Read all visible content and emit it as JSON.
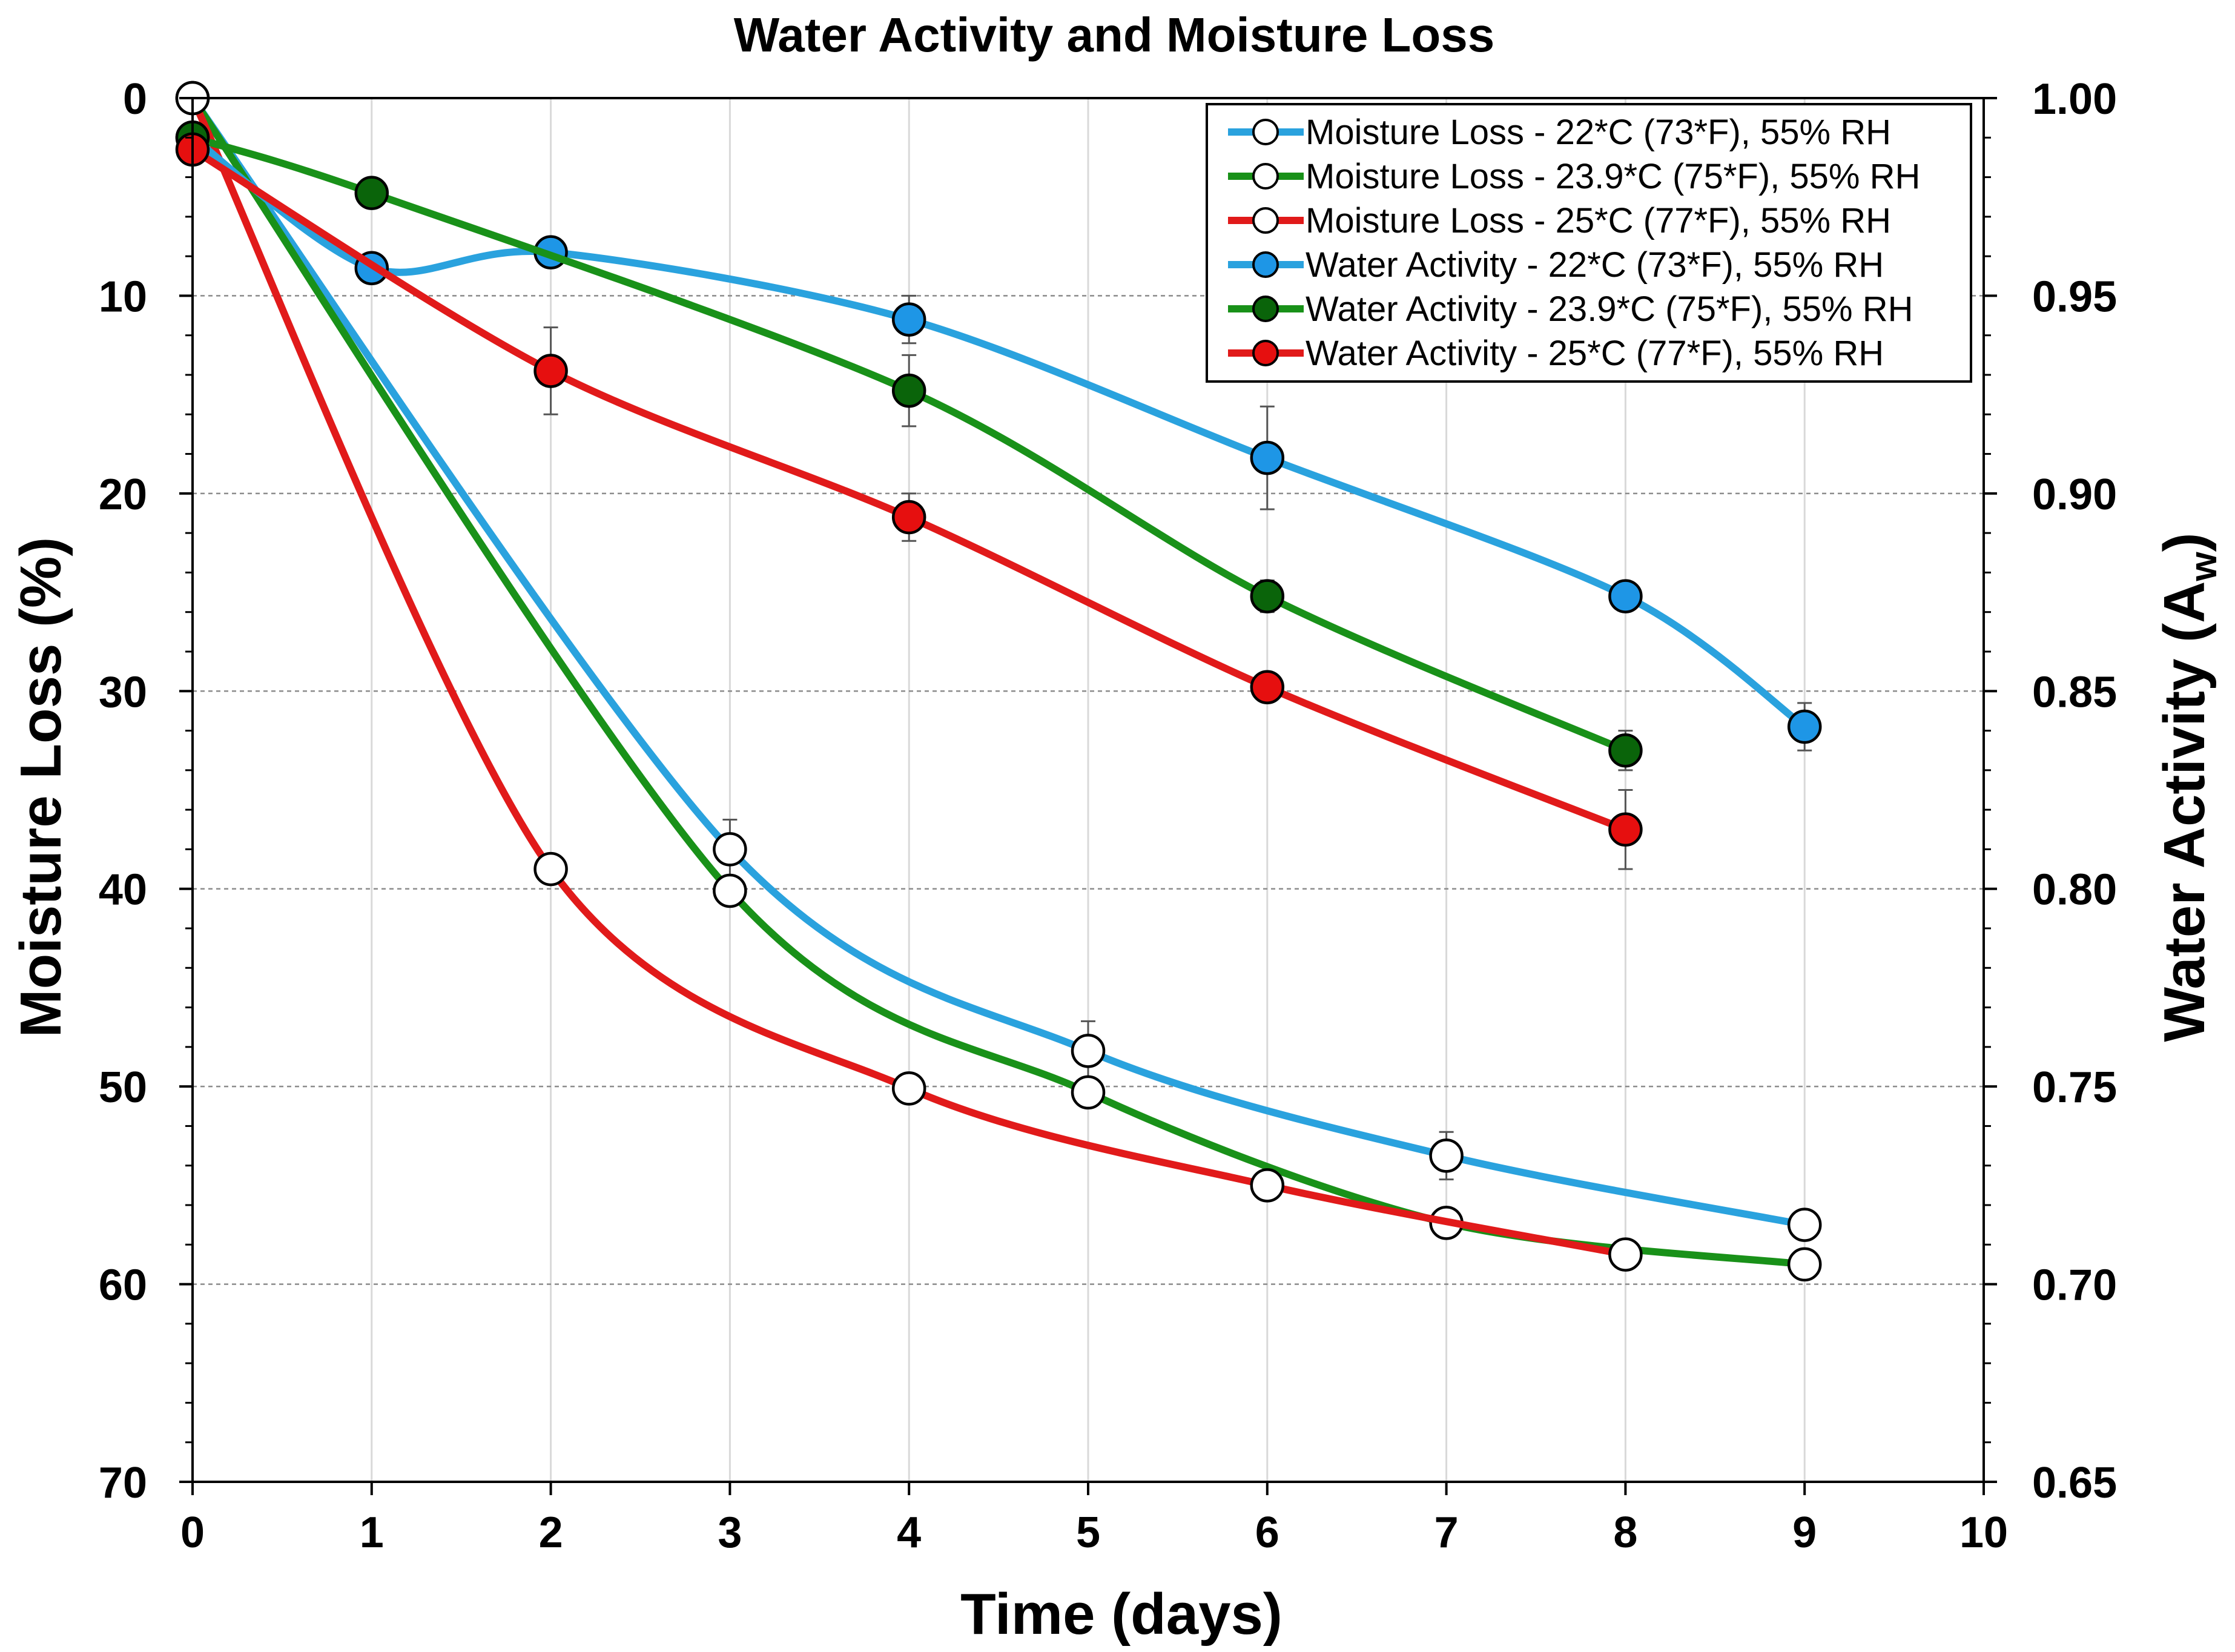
{
  "chart_data": {
    "type": "line",
    "title": "Water Activity and Moisture Loss",
    "xlabel": "Time (days)",
    "ylabel": "Moisture Loss (%)",
    "y2label_main": "Water Activity (A",
    "y2label_sub": "w",
    "y2label_close": ")",
    "xlim": [
      0,
      10
    ],
    "ylim": [
      0,
      70
    ],
    "y_inverted": true,
    "y2lim": [
      0.65,
      1.0
    ],
    "x_ticks": [
      "0",
      "1",
      "2",
      "3",
      "4",
      "5",
      "6",
      "7",
      "8",
      "9",
      "10"
    ],
    "y_ticks": [
      "0",
      "10",
      "20",
      "30",
      "40",
      "50",
      "60",
      "70"
    ],
    "y2_ticks": [
      "1.00",
      "0.95",
      "0.90",
      "0.85",
      "0.80",
      "0.75",
      "0.70",
      "0.65"
    ],
    "grid": true,
    "legend_position": "top-right",
    "series": [
      {
        "name": "Moisture Loss - 22*C (73*F), 55% RH",
        "axis": "left",
        "color": "#2aa2de",
        "marker": "open",
        "x": [
          0,
          3,
          5,
          7,
          9
        ],
        "values": [
          0,
          38.0,
          48.2,
          53.5,
          57.0
        ],
        "error": [
          null,
          1.5,
          1.5,
          1.2,
          null
        ]
      },
      {
        "name": "Moisture Loss - 23.9*C (75*F), 55% RH",
        "axis": "left",
        "color": "#199119",
        "marker": "open",
        "x": [
          0,
          3,
          5,
          7,
          9
        ],
        "values": [
          0,
          40.1,
          50.3,
          56.9,
          59.0
        ],
        "error": [
          null,
          null,
          null,
          null,
          null
        ]
      },
      {
        "name": "Moisture Loss - 25*C (77*F), 55% RH",
        "axis": "left",
        "color": "#e11a1a",
        "marker": "open",
        "x": [
          0,
          2,
          4,
          6,
          8
        ],
        "values": [
          0,
          39.0,
          50.1,
          55.0,
          58.5
        ],
        "error": [
          null,
          null,
          null,
          null,
          null
        ]
      },
      {
        "name": "Water Activity - 22*C (73*F), 55% RH",
        "axis": "right",
        "color": "#2aa2de",
        "marker": "filled",
        "fill": "#1e96e6",
        "x": [
          0,
          1,
          2,
          4,
          6,
          8,
          9
        ],
        "values": [
          0.99,
          0.957,
          0.961,
          0.944,
          0.909,
          0.874,
          0.841
        ],
        "error": [
          null,
          null,
          null,
          0.006,
          0.013,
          0.003,
          0.006
        ]
      },
      {
        "name": "Water Activity - 23.9*C (75*F), 55% RH",
        "axis": "right",
        "color": "#199119",
        "marker": "filled",
        "fill": "#0a640a",
        "x": [
          0,
          1,
          4,
          6,
          8
        ],
        "values": [
          0.99,
          0.976,
          0.926,
          0.874,
          0.835
        ],
        "error": [
          null,
          null,
          0.009,
          0.004,
          0.005
        ]
      },
      {
        "name": "Water Activity - 25*C (77*F), 55% RH",
        "axis": "right",
        "color": "#e11a1a",
        "marker": "filled",
        "fill": "#e60f0f",
        "x": [
          0,
          2,
          4,
          6,
          8
        ],
        "values": [
          0.987,
          0.931,
          0.894,
          0.851,
          0.815
        ],
        "error": [
          null,
          0.011,
          0.006,
          null,
          0.01
        ]
      }
    ]
  }
}
